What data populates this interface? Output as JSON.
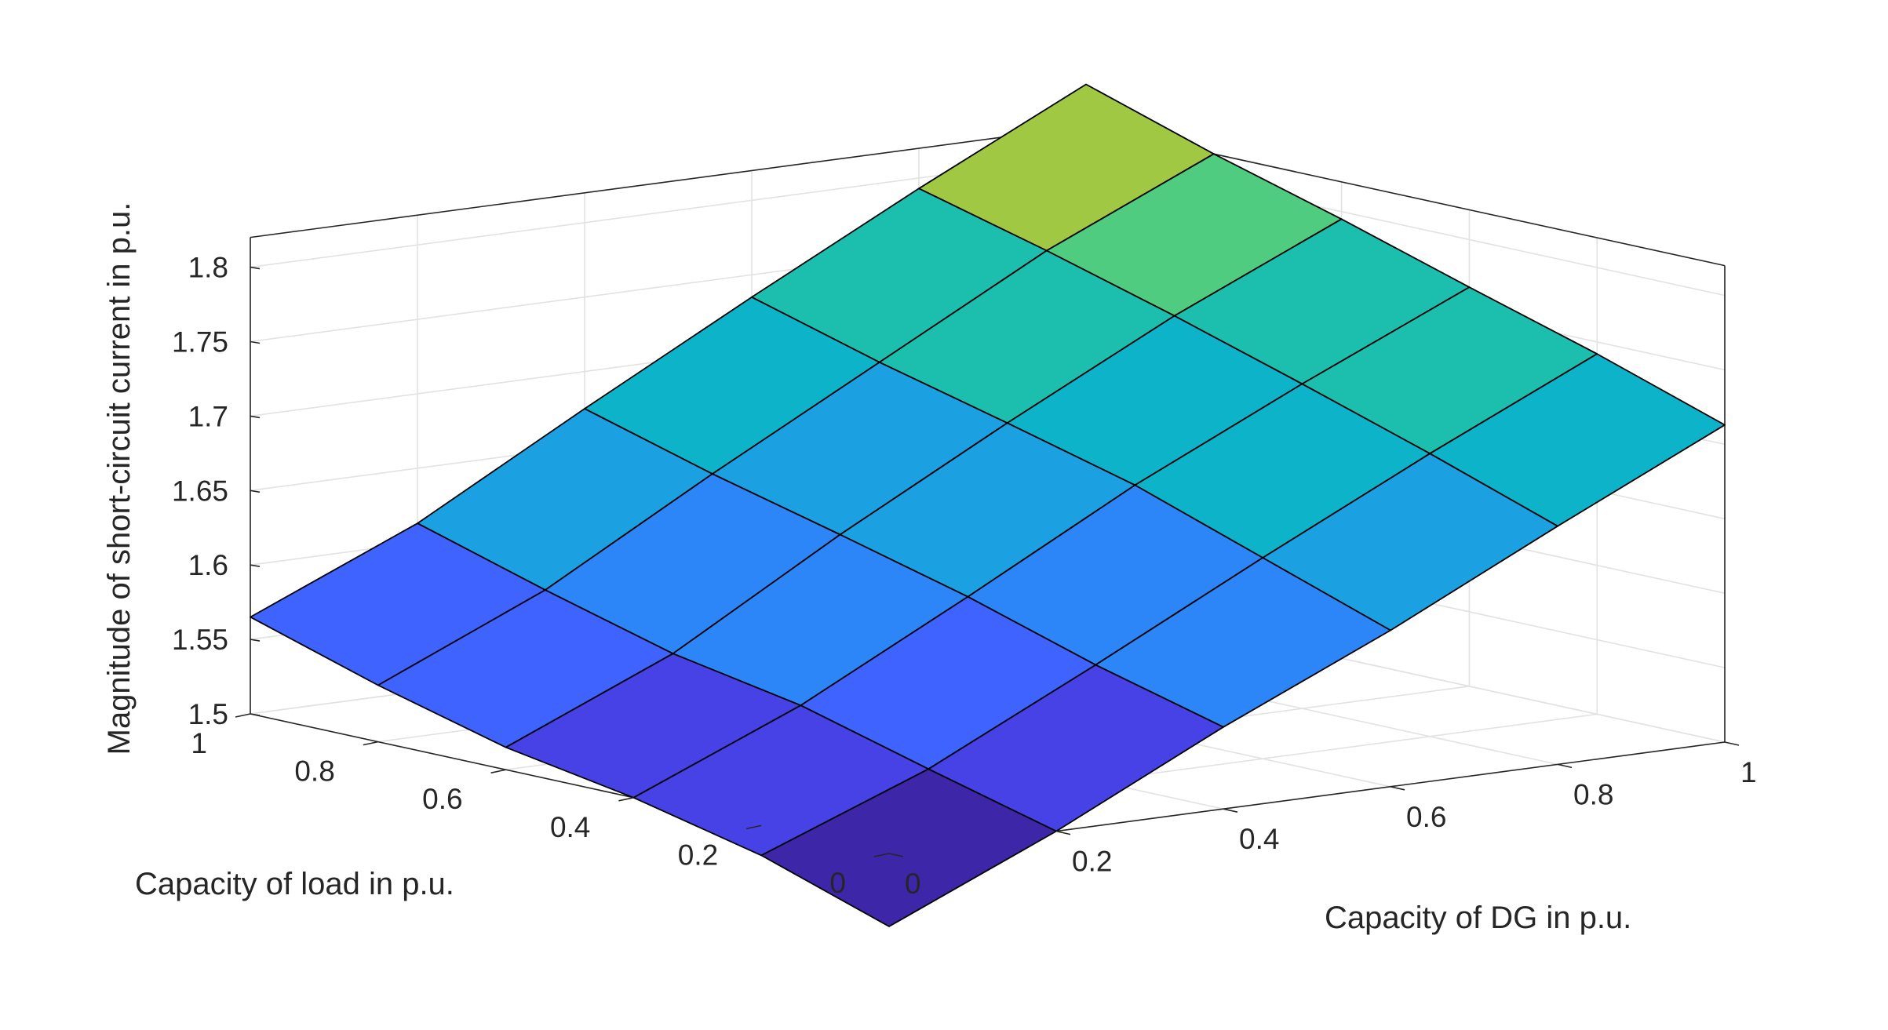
{
  "chart_data": {
    "type": "surface",
    "title": "",
    "xlabel": "Capacity of DG in p.u.",
    "ylabel": "Capacity of load in p.u.",
    "zlabel": "Magnitude of short-circuit current in p.u.",
    "x": [
      0,
      0.2,
      0.4,
      0.6,
      0.8,
      1
    ],
    "y": [
      0,
      0.2,
      0.4,
      0.6,
      0.8,
      1
    ],
    "z_rows_by_load": [
      [
        1.451,
        1.5,
        1.555,
        1.605,
        1.66,
        1.713
      ],
      [
        1.48,
        1.523,
        1.578,
        1.635,
        1.69,
        1.742
      ],
      [
        1.5,
        1.547,
        1.605,
        1.665,
        1.718,
        1.768
      ],
      [
        1.515,
        1.563,
        1.628,
        1.688,
        1.745,
        1.795
      ],
      [
        1.538,
        1.587,
        1.65,
        1.71,
        1.77,
        1.82
      ],
      [
        1.565,
        1.613,
        1.675,
        1.735,
        1.793,
        1.848
      ]
    ],
    "xlim": [
      0,
      1
    ],
    "ylim": [
      0,
      1
    ],
    "zlim": [
      1.5,
      1.8
    ],
    "xticks": [
      "0",
      "0.2",
      "0.4",
      "0.6",
      "0.8",
      "1"
    ],
    "yticks": [
      "0",
      "0.2",
      "0.4",
      "0.6",
      "0.8",
      "1"
    ],
    "zticks": [
      "1.5",
      "1.55",
      "1.6",
      "1.65",
      "1.7",
      "1.75",
      "1.8"
    ],
    "colormap": [
      "#3e26a8",
      "#4742e6",
      "#3e63ff",
      "#2c86f8",
      "#1ba1e2",
      "#0db4c9",
      "#1cbfae",
      "#50cc80",
      "#a0c843"
    ],
    "color_range": [
      1.451,
      1.848
    ],
    "grid": true,
    "box": true
  }
}
